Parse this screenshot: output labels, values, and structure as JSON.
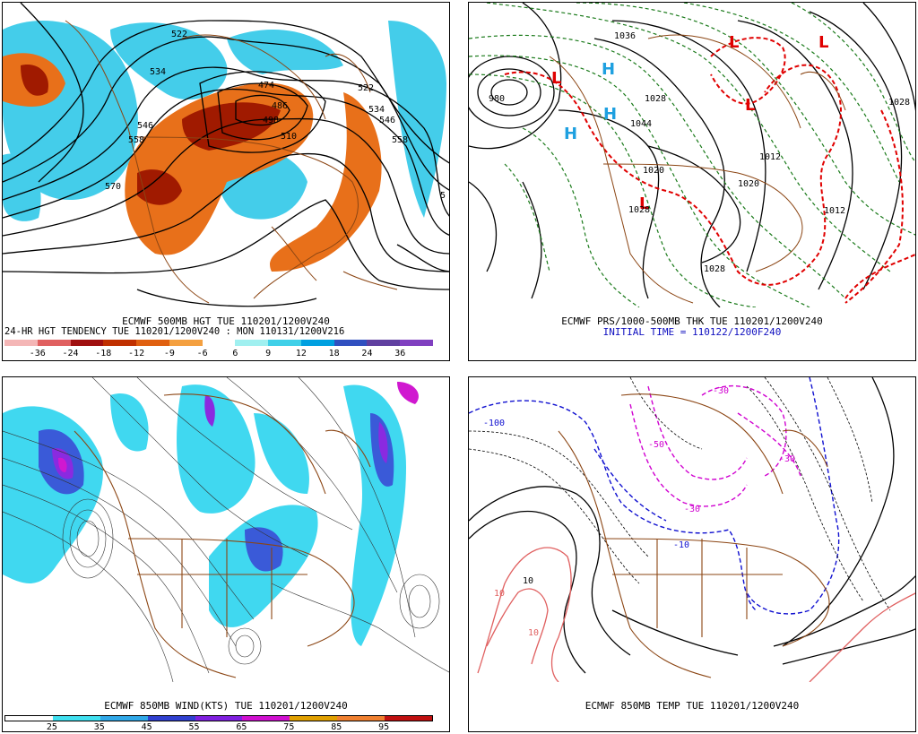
{
  "panels": {
    "p1": {
      "caption1": "ECMWF 500MB HGT TUE 110201/1200V240",
      "caption2": "24-HR HGT TENDENCY TUE 110201/1200V240 : MON 110131/1200V216",
      "contour_labels": [
        "522",
        "534",
        "546",
        "558",
        "570",
        "474",
        "486",
        "498",
        "510",
        "522",
        "534",
        "546",
        "558",
        "582",
        "5"
      ],
      "colorbar_labels": [
        "-36",
        "-24",
        "-18",
        "-12",
        "-9",
        "-6",
        "6",
        "9",
        "12",
        "18",
        "24",
        "36"
      ],
      "colorbar_colors": [
        "#f4b6b6",
        "#e06060",
        "#a01010",
        "#c03000",
        "#e06010",
        "#f4a040",
        "#ffffff",
        "#a0f0f0",
        "#40d0e8",
        "#00a0e0",
        "#3050c0",
        "#6040a0",
        "#8040c0"
      ]
    },
    "p2": {
      "caption1": "ECMWF PRS/1000-500MB THK TUE 110201/1200V240",
      "caption2": "INITIAL TIME = 110122/1200F240",
      "contour_labels": [
        "980",
        "1036",
        "1044",
        "1028",
        "1020",
        "1012",
        "1028",
        "1028",
        "1020",
        "1012",
        "1028",
        "H",
        "H",
        "H",
        "L",
        "L",
        "L",
        "L",
        "L"
      ]
    },
    "p3": {
      "caption1": "ECMWF 850MB WIND(KTS) TUE 110201/1200V240",
      "colorbar_labels": [
        "25",
        "35",
        "45",
        "55",
        "65",
        "75",
        "85",
        "95"
      ],
      "colorbar_colors": [
        "#ffffff",
        "#40e0f0",
        "#30a8e8",
        "#3040d0",
        "#8020e0",
        "#d010d0",
        "#e0a000",
        "#f08030",
        "#c01010"
      ]
    },
    "p4": {
      "caption1": "ECMWF 850MB TEMP TUE 110201/1200V240",
      "contour_labels": [
        "-100",
        "-50",
        "-30",
        "-30",
        "-30",
        "-10",
        "10",
        "10",
        "10"
      ]
    }
  },
  "colors": {
    "outline": "#8b4513",
    "contour_black": "#000000",
    "contour_green": "#1a7a1a",
    "contour_red": "#e00000",
    "contour_blue": "#1010d0",
    "contour_magenta": "#d000d0",
    "contour_pink": "#e06060",
    "fill_cyan": "#00c8e8",
    "fill_orange": "#e8701a",
    "fill_darkred": "#a01a00"
  }
}
